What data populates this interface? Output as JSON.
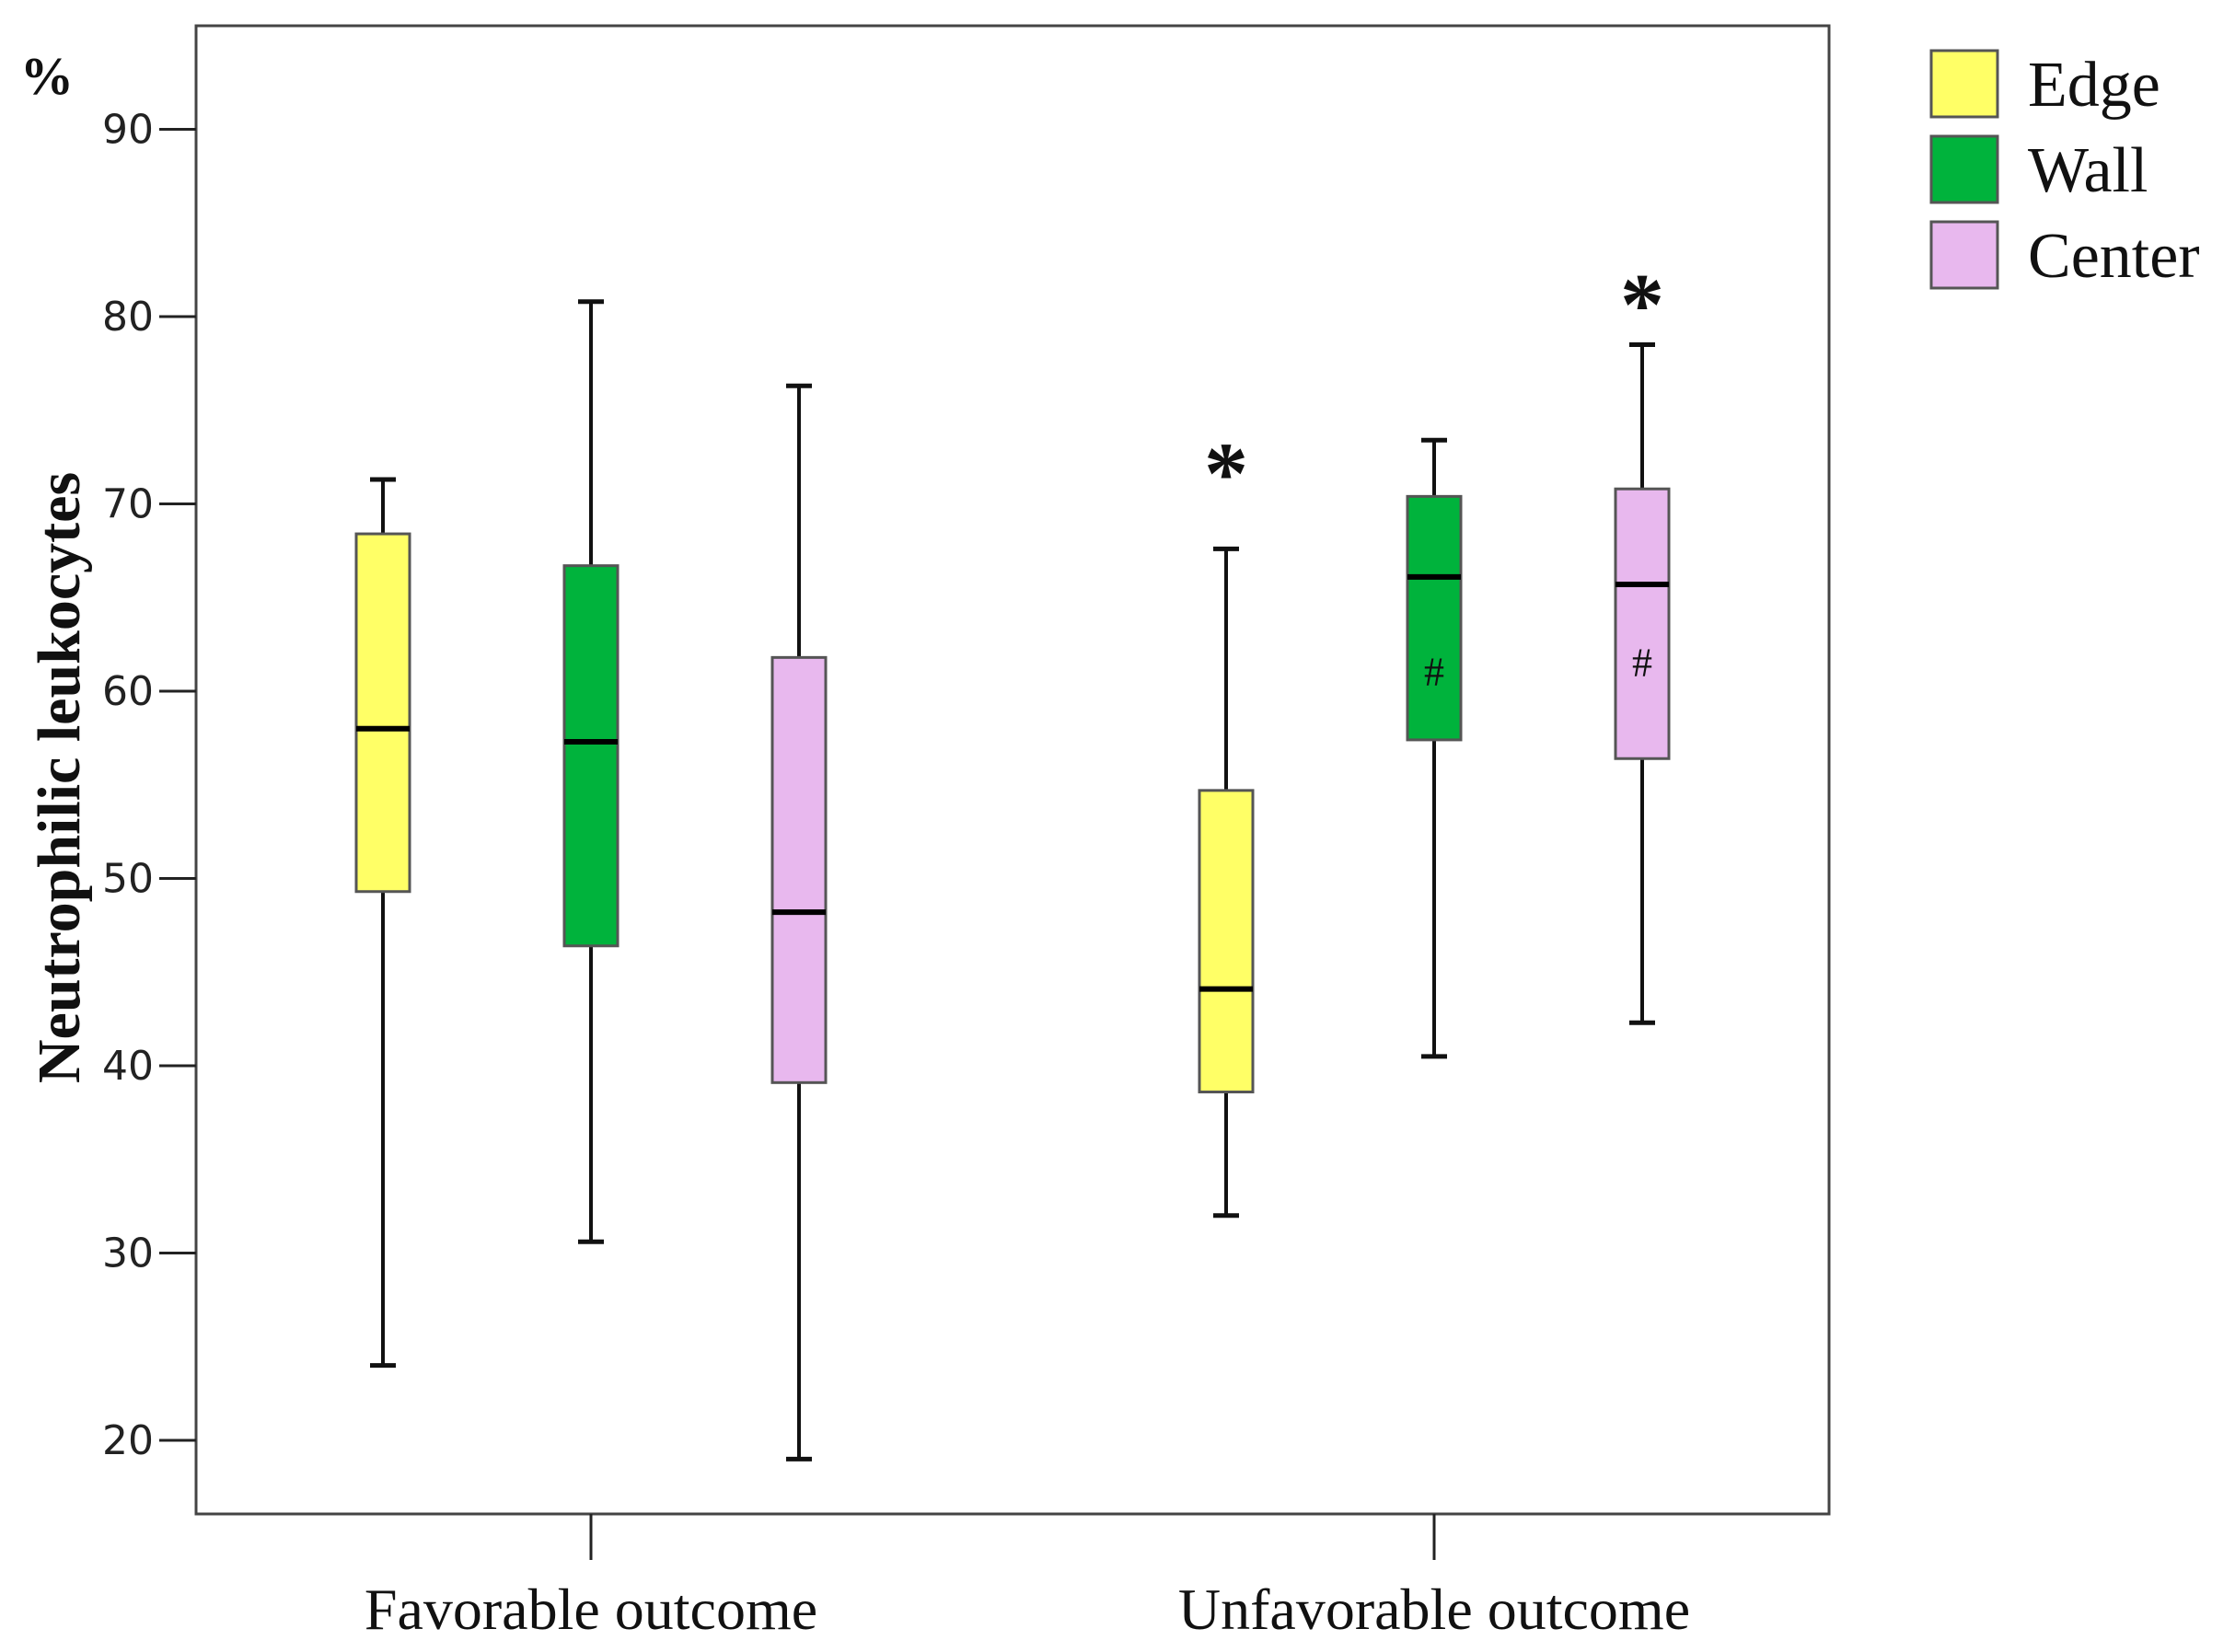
{
  "chart_data": {
    "type": "box",
    "title": "",
    "xlabel": "",
    "ylabel": "Neutrophilic leukocytes",
    "y_unit": "%",
    "ylim": [
      15,
      96
    ],
    "yticks": [
      20,
      30,
      40,
      50,
      60,
      70,
      80,
      90
    ],
    "categories": [
      "Favorable outcome",
      "Unfavorable outcome"
    ],
    "series": [
      {
        "name": "Edge",
        "color": "#ffff66",
        "boxes": [
          {
            "min": 24,
            "q1": 49.3,
            "median": 58,
            "q3": 68.4,
            "max": 71.3
          },
          {
            "min": 32,
            "q1": 38.6,
            "median": 44.1,
            "q3": 54.7,
            "max": 67.6
          }
        ]
      },
      {
        "name": "Wall",
        "color": "#00b33c",
        "boxes": [
          {
            "min": 30.6,
            "q1": 46.4,
            "median": 57.3,
            "q3": 66.7,
            "max": 80.8
          },
          {
            "min": 40.5,
            "q1": 57.4,
            "median": 66.1,
            "q3": 70.4,
            "max": 73.4
          }
        ]
      },
      {
        "name": "Center",
        "color": "#e8b8ee",
        "boxes": [
          {
            "min": 19,
            "q1": 39.1,
            "median": 48.2,
            "q3": 61.8,
            "max": 76.3
          },
          {
            "min": 42.3,
            "q1": 56.4,
            "median": 65.7,
            "q3": 70.8,
            "max": 78.5
          }
        ]
      }
    ],
    "annotations": [
      {
        "text": "*",
        "series": 0,
        "category": 1,
        "y": 72
      },
      {
        "text": "*",
        "series": 2,
        "category": 1,
        "y": 81
      },
      {
        "text": "#",
        "series": 1,
        "category": 1,
        "y": 61
      },
      {
        "text": "#",
        "series": 2,
        "category": 1,
        "y": 61.5
      }
    ],
    "legend": [
      "Edge",
      "Wall",
      "Center"
    ],
    "legend_position": "top-right",
    "grid": false
  }
}
